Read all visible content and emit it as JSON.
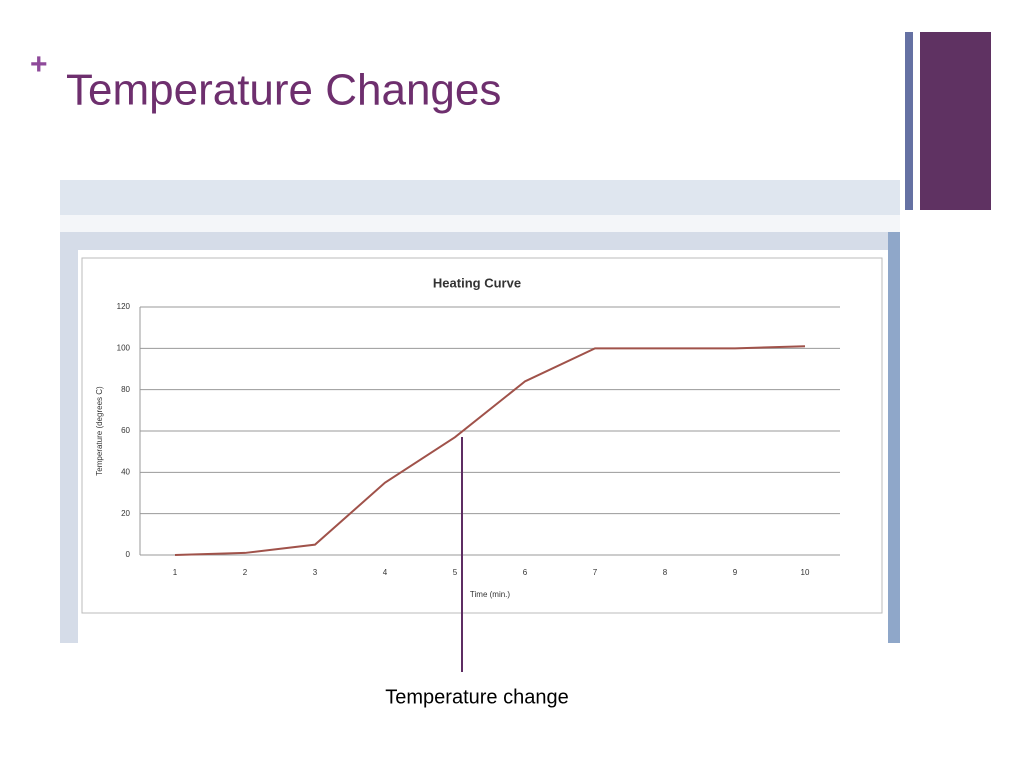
{
  "slide": {
    "title": "Temperature Changes",
    "annotation": "Temperature change"
  },
  "chart_data": {
    "type": "line",
    "title": "Heating Curve",
    "x_label": "Time (min.)",
    "y_label": "Temperature (degrees C)",
    "categories": [
      "1",
      "2",
      "3",
      "4",
      "5",
      "6",
      "7",
      "8",
      "9",
      "10"
    ],
    "series": [
      {
        "name": "Temperature",
        "color": "#a0524a",
        "values": [
          0,
          1,
          5,
          35,
          57,
          84,
          100,
          100,
          100,
          101
        ]
      }
    ],
    "ylim": [
      0,
      120
    ],
    "yticks": [
      0,
      20,
      40,
      60,
      80,
      100,
      120
    ],
    "grid": true
  }
}
